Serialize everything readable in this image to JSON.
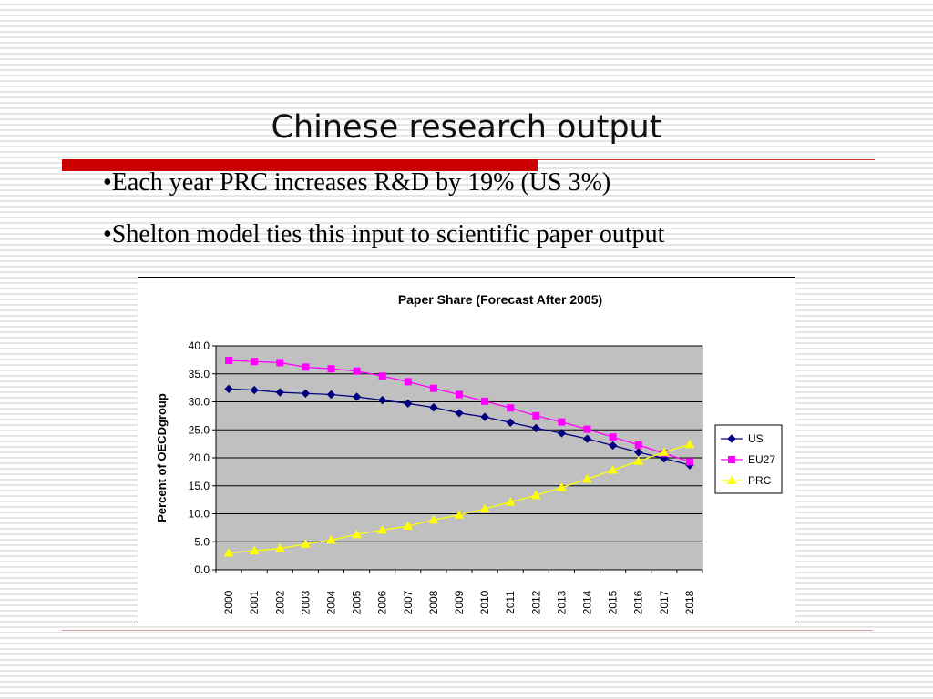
{
  "slide": {
    "title": "Chinese research output",
    "bullets": [
      "•Each year PRC increases R&D by 19% (US 3%)",
      "•Shelton model ties this input to scientific paper output"
    ]
  },
  "chart_data": {
    "type": "line",
    "title": "Paper Share (Forecast After 2005)",
    "xlabel": "",
    "ylabel": "Percent of OECDgroup",
    "x": [
      "2000",
      "2001",
      "2002",
      "2003",
      "2004",
      "2005",
      "2006",
      "2007",
      "2008",
      "2009",
      "2010",
      "2011",
      "2012",
      "2013",
      "2014",
      "2015",
      "2016",
      "2017",
      "2018"
    ],
    "ylim": [
      0,
      40
    ],
    "yticks": [
      "0.0",
      "5.0",
      "10.0",
      "15.0",
      "20.0",
      "25.0",
      "30.0",
      "35.0",
      "40.0"
    ],
    "grid": true,
    "plot_background": "#c0c0c0",
    "legend_position": "right",
    "series": [
      {
        "name": "US",
        "color": "#000080",
        "marker": "diamond",
        "values": [
          32.3,
          32.1,
          31.7,
          31.5,
          31.3,
          30.9,
          30.3,
          29.7,
          29.0,
          28.0,
          27.3,
          26.3,
          25.3,
          24.4,
          23.4,
          22.2,
          21.0,
          19.9,
          18.7
        ]
      },
      {
        "name": "EU27",
        "color": "#ff00ff",
        "marker": "square",
        "values": [
          37.4,
          37.2,
          37.0,
          36.2,
          35.9,
          35.5,
          34.6,
          33.6,
          32.4,
          31.3,
          30.1,
          28.9,
          27.5,
          26.4,
          25.1,
          23.7,
          22.3,
          20.8,
          19.3
        ]
      },
      {
        "name": "PRC",
        "color": "#ffff00",
        "marker": "triangle",
        "values": [
          3.0,
          3.4,
          3.8,
          4.6,
          5.3,
          6.3,
          7.1,
          7.8,
          8.9,
          9.8,
          10.9,
          12.1,
          13.3,
          14.7,
          16.2,
          17.8,
          19.4,
          21.0,
          22.4
        ]
      }
    ]
  }
}
